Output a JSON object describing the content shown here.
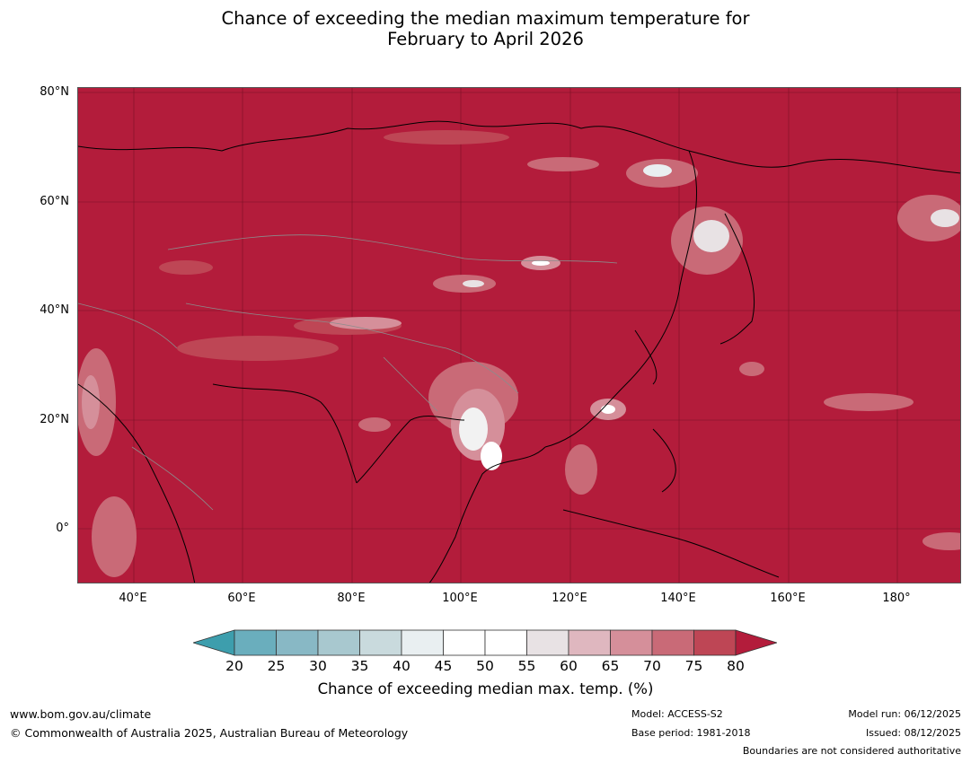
{
  "title": {
    "line1": "Chance of exceeding the median maximum temperature for",
    "line2": "February to April 2026"
  },
  "map": {
    "lat_labels": [
      "80°N",
      "60°N",
      "40°N",
      "20°N",
      "0°"
    ],
    "lon_labels": [
      "40°E",
      "60°E",
      "80°E",
      "100°E",
      "120°E",
      "140°E",
      "160°E",
      "180°"
    ],
    "background_color": "#b31c3b"
  },
  "colorbar": {
    "ticks": [
      "20",
      "25",
      "30",
      "35",
      "40",
      "45",
      "50",
      "55",
      "60",
      "65",
      "70",
      "75",
      "80"
    ],
    "colors": [
      "#3d9ead",
      "#6aaebd",
      "#88b8c5",
      "#a8c8cf",
      "#c9dadd",
      "#e9eff1",
      "#ffffff",
      "#ffffff",
      "#e8e2e4",
      "#dfb7bf",
      "#d58f9a",
      "#c96a77",
      "#be4655",
      "#b31c3b"
    ],
    "title": "Chance of exceeding median max. temp. (%)"
  },
  "footer": {
    "url": "www.bom.gov.au/climate",
    "copyright": "© Commonwealth of Australia 2025, Australian Bureau of Meteorology",
    "model": "Model: ACCESS-S2",
    "base_period": "Base period: 1981-2018",
    "model_run": "Model run: 06/12/2025",
    "issued": "Issued: 08/12/2025",
    "disclaimer": "Boundaries are not considered authoritative"
  }
}
